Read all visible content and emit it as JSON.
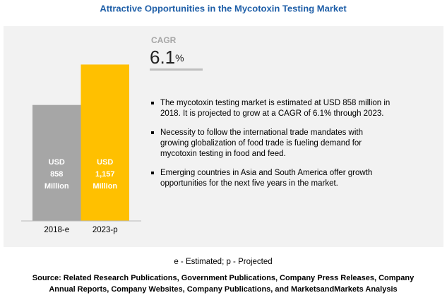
{
  "chart_data": {
    "type": "bar",
    "title": "Attractive Opportunities in the Mycotoxin Testing Market",
    "categories": [
      "2018-e",
      "2023-p"
    ],
    "values": [
      858,
      1157
    ],
    "value_labels": [
      [
        "USD",
        "858",
        "Million"
      ],
      [
        "USD",
        "1,157",
        "Million"
      ]
    ],
    "colors": [
      "#a6a6a6",
      "#ffc000"
    ]
  },
  "cagr": {
    "label": "CAGR",
    "value": "6.1",
    "unit": "%"
  },
  "bullets": [
    [
      "The mycotoxin testing market is estimated at USD 858 million in",
      "2018. It is projected to grow at a CAGR of 6.1% through 2023."
    ],
    [
      "Necessity to follow the international trade mandates with",
      "growing globalization of food trade is fueling demand for",
      "mycotoxin testing in food and feed."
    ],
    [
      "Emerging countries in Asia and South America offer growth",
      "opportunities for the next five years in the market."
    ]
  ],
  "footnote": "e - Estimated; p - Projected",
  "source": [
    "Source: Related Research Publications, Government Publications, Company Press Releases, Company",
    "Annual Reports, Company Websites, Company Publications, and MarketsandMarkets Analysis"
  ]
}
